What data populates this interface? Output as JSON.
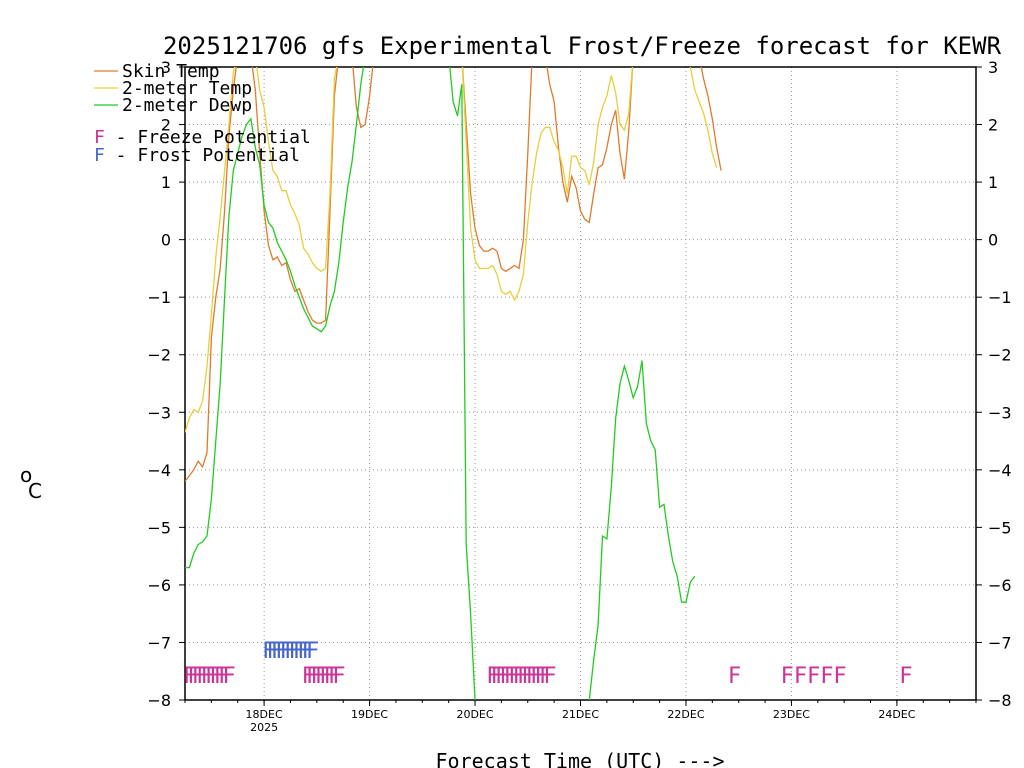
{
  "chart_data": {
    "type": "line",
    "title": "2025121706 gfs Experimental Frost/Freeze forecast for KEWR",
    "xlabel": "Forecast Time (UTC) --->",
    "ylabel_unit": "o",
    "ylabel_letter": "C",
    "ylim": [
      -8,
      3
    ],
    "yticks": [
      -8,
      -7,
      -6,
      -5,
      -4,
      -3,
      -2,
      -1,
      0,
      1,
      2,
      3
    ],
    "xlim_hours": [
      0,
      180
    ],
    "x_unit": "hours after 2025-12-17 06 UTC",
    "xticks": [
      {
        "hour": 18,
        "label": "18DEC",
        "sub": "2025"
      },
      {
        "hour": 42,
        "label": "19DEC",
        "sub": ""
      },
      {
        "hour": 66,
        "label": "20DEC",
        "sub": ""
      },
      {
        "hour": 90,
        "label": "21DEC",
        "sub": ""
      },
      {
        "hour": 114,
        "label": "22DEC",
        "sub": ""
      },
      {
        "hour": 138,
        "label": "23DEC",
        "sub": ""
      },
      {
        "hour": 162,
        "label": "24DEC",
        "sub": ""
      }
    ],
    "legend": [
      {
        "label": "Skin Temp",
        "color": "#e07a2e"
      },
      {
        "label": "2-meter Temp",
        "color": "#e8cf3a"
      },
      {
        "label": "2-meter Dewp",
        "color": "#22cc22"
      }
    ],
    "potential_legend": [
      {
        "letter": "F",
        "text": " - Freeze Potential",
        "color": "#cc3399"
      },
      {
        "letter": "F",
        "text": " - Frost Potential",
        "color": "#4466cc"
      }
    ],
    "series": [
      {
        "name": "Skin Temp",
        "color": "#e07a2e",
        "segments": [
          [
            [
              0,
              -4.2
            ],
            [
              1,
              -4.1
            ],
            [
              2,
              -4.0
            ],
            [
              3,
              -3.85
            ],
            [
              4,
              -3.95
            ],
            [
              5,
              -3.7
            ],
            [
              6,
              -1.7
            ],
            [
              7,
              -1.0
            ],
            [
              8,
              -0.5
            ],
            [
              9,
              0.5
            ],
            [
              10,
              1.8
            ],
            [
              11,
              2.6
            ],
            [
              12,
              3.2
            ]
          ],
          [
            [
              15,
              3.2
            ],
            [
              16,
              2.6
            ],
            [
              17,
              1.5
            ],
            [
              18,
              0.5
            ],
            [
              19,
              -0.1
            ],
            [
              20,
              -0.35
            ],
            [
              21,
              -0.3
            ],
            [
              22,
              -0.45
            ],
            [
              23,
              -0.4
            ],
            [
              24,
              -0.7
            ],
            [
              25,
              -0.9
            ],
            [
              26,
              -0.85
            ],
            [
              27,
              -1.05
            ],
            [
              28,
              -1.25
            ],
            [
              29,
              -1.4
            ],
            [
              30,
              -1.45
            ],
            [
              31,
              -1.45
            ],
            [
              32,
              -1.4
            ],
            [
              33,
              0.5
            ],
            [
              34,
              2.5
            ],
            [
              35,
              3.2
            ]
          ],
          [
            [
              38,
              3.2
            ],
            [
              39,
              2.3
            ],
            [
              40,
              1.95
            ],
            [
              41,
              2.0
            ],
            [
              42,
              2.5
            ],
            [
              43,
              3.2
            ]
          ],
          [
            [
              63,
              3.2
            ],
            [
              64,
              2.0
            ],
            [
              65,
              0.8
            ],
            [
              66,
              0.2
            ],
            [
              67,
              -0.1
            ],
            [
              68,
              -0.2
            ],
            [
              69,
              -0.2
            ],
            [
              70,
              -0.15
            ],
            [
              71,
              -0.2
            ],
            [
              72,
              -0.5
            ],
            [
              73,
              -0.55
            ],
            [
              74,
              -0.5
            ],
            [
              75,
              -0.45
            ],
            [
              76,
              -0.5
            ],
            [
              77,
              0.0
            ],
            [
              78,
              1.5
            ],
            [
              79,
              3.2
            ]
          ],
          [
            [
              82,
              3.2
            ],
            [
              83,
              2.7
            ],
            [
              84,
              2.4
            ],
            [
              85,
              1.6
            ],
            [
              86,
              1.0
            ],
            [
              87,
              0.65
            ],
            [
              88,
              1.1
            ],
            [
              89,
              0.9
            ],
            [
              90,
              0.5
            ],
            [
              91,
              0.35
            ],
            [
              92,
              0.3
            ],
            [
              93,
              0.8
            ],
            [
              94,
              1.25
            ],
            [
              95,
              1.3
            ],
            [
              96,
              1.6
            ],
            [
              97,
              2.0
            ],
            [
              98,
              2.25
            ],
            [
              99,
              1.5
            ],
            [
              100,
              1.05
            ],
            [
              101,
              1.9
            ],
            [
              102,
              3.2
            ]
          ],
          [
            [
              117,
              3.2
            ],
            [
              118,
              2.8
            ],
            [
              119,
              2.5
            ],
            [
              120,
              2.1
            ],
            [
              121,
              1.6
            ],
            [
              122,
              1.2
            ]
          ]
        ]
      },
      {
        "name": "2-meter Temp",
        "color": "#e8cf3a",
        "segments": [
          [
            [
              0,
              -3.35
            ],
            [
              1,
              -3.1
            ],
            [
              2,
              -2.95
            ],
            [
              3,
              -3.0
            ],
            [
              4,
              -2.8
            ],
            [
              5,
              -2.2
            ],
            [
              6,
              -1.3
            ],
            [
              7,
              -0.3
            ],
            [
              8,
              0.4
            ],
            [
              9,
              1.2
            ],
            [
              10,
              2.0
            ],
            [
              11,
              2.9
            ],
            [
              12,
              3.2
            ]
          ],
          [
            [
              16,
              3.2
            ],
            [
              17,
              2.6
            ],
            [
              18,
              2.3
            ],
            [
              19,
              1.7
            ],
            [
              20,
              1.2
            ],
            [
              21,
              1.1
            ],
            [
              22,
              0.85
            ],
            [
              23,
              0.85
            ],
            [
              24,
              0.6
            ],
            [
              25,
              0.45
            ],
            [
              26,
              0.25
            ],
            [
              27,
              -0.15
            ],
            [
              28,
              -0.25
            ],
            [
              29,
              -0.4
            ],
            [
              30,
              -0.5
            ],
            [
              31,
              -0.55
            ],
            [
              32,
              -0.5
            ],
            [
              33,
              0.8
            ],
            [
              34,
              2.8
            ],
            [
              35,
              3.2
            ]
          ],
          [
            [
              63,
              3.2
            ],
            [
              64,
              1.7
            ],
            [
              65,
              0.2
            ],
            [
              66,
              -0.35
            ],
            [
              67,
              -0.5
            ],
            [
              68,
              -0.5
            ],
            [
              69,
              -0.5
            ],
            [
              70,
              -0.45
            ],
            [
              71,
              -0.6
            ],
            [
              72,
              -0.9
            ],
            [
              73,
              -0.95
            ],
            [
              74,
              -0.9
            ],
            [
              75,
              -1.05
            ],
            [
              76,
              -0.9
            ],
            [
              77,
              -0.6
            ],
            [
              78,
              0.3
            ],
            [
              79,
              1.0
            ],
            [
              80,
              1.5
            ],
            [
              81,
              1.85
            ],
            [
              82,
              1.95
            ],
            [
              83,
              1.95
            ],
            [
              84,
              1.7
            ],
            [
              85,
              1.55
            ],
            [
              86,
              1.25
            ],
            [
              87,
              0.8
            ],
            [
              88,
              1.45
            ],
            [
              89,
              1.45
            ],
            [
              90,
              1.25
            ],
            [
              91,
              1.2
            ],
            [
              92,
              0.95
            ],
            [
              93,
              1.35
            ],
            [
              94,
              2.0
            ],
            [
              95,
              2.3
            ],
            [
              96,
              2.5
            ],
            [
              97,
              2.85
            ],
            [
              98,
              2.55
            ],
            [
              99,
              2.0
            ],
            [
              100,
              1.9
            ],
            [
              101,
              2.2
            ],
            [
              102,
              3.2
            ]
          ],
          [
            [
              114,
              3.2
            ],
            [
              115,
              3.0
            ],
            [
              116,
              2.6
            ],
            [
              117,
              2.4
            ],
            [
              118,
              2.2
            ],
            [
              119,
              1.9
            ],
            [
              120,
              1.5
            ],
            [
              121,
              1.25
            ]
          ]
        ]
      },
      {
        "name": "2-meter Dewp",
        "color": "#22cc22",
        "segments": [
          [
            [
              0,
              -5.7
            ],
            [
              1,
              -5.7
            ],
            [
              2,
              -5.45
            ],
            [
              3,
              -5.3
            ],
            [
              4,
              -5.25
            ],
            [
              5,
              -5.15
            ],
            [
              6,
              -4.5
            ],
            [
              7,
              -3.5
            ],
            [
              8,
              -2.5
            ],
            [
              9,
              -1.0
            ],
            [
              10,
              0.4
            ],
            [
              11,
              1.2
            ],
            [
              12,
              1.5
            ],
            [
              13,
              1.8
            ],
            [
              14,
              2.0
            ],
            [
              15,
              2.1
            ],
            [
              16,
              1.6
            ],
            [
              17,
              1.3
            ],
            [
              18,
              0.6
            ],
            [
              19,
              0.3
            ],
            [
              20,
              0.2
            ],
            [
              21,
              -0.05
            ],
            [
              22,
              -0.2
            ],
            [
              23,
              -0.35
            ],
            [
              24,
              -0.55
            ],
            [
              25,
              -0.8
            ],
            [
              26,
              -1.0
            ],
            [
              27,
              -1.2
            ],
            [
              28,
              -1.35
            ],
            [
              29,
              -1.5
            ],
            [
              30,
              -1.55
            ],
            [
              31,
              -1.6
            ],
            [
              32,
              -1.5
            ],
            [
              33,
              -1.15
            ],
            [
              34,
              -0.9
            ],
            [
              35,
              -0.4
            ],
            [
              36,
              0.3
            ],
            [
              37,
              0.9
            ],
            [
              38,
              1.35
            ],
            [
              39,
              2.0
            ],
            [
              40,
              2.7
            ],
            [
              41,
              3.2
            ]
          ],
          [
            [
              60,
              3.2
            ],
            [
              61,
              2.4
            ],
            [
              62,
              2.15
            ],
            [
              63,
              2.7
            ],
            [
              64,
              -5.3
            ],
            [
              65,
              -6.5
            ],
            [
              66,
              -8.0
            ]
          ],
          [
            [
              92,
              -8.0
            ],
            [
              93,
              -7.3
            ],
            [
              94,
              -6.7
            ],
            [
              95,
              -5.15
            ],
            [
              96,
              -5.2
            ],
            [
              97,
              -4.3
            ],
            [
              98,
              -3.1
            ],
            [
              99,
              -2.5
            ],
            [
              100,
              -2.2
            ],
            [
              101,
              -2.45
            ],
            [
              102,
              -2.75
            ],
            [
              103,
              -2.55
            ],
            [
              104,
              -2.1
            ],
            [
              105,
              -3.2
            ],
            [
              106,
              -3.5
            ],
            [
              107,
              -3.65
            ],
            [
              108,
              -4.65
            ],
            [
              109,
              -4.6
            ],
            [
              110,
              -5.15
            ],
            [
              111,
              -5.6
            ],
            [
              112,
              -5.85
            ],
            [
              113,
              -6.3
            ],
            [
              114,
              -6.3
            ],
            [
              115,
              -5.95
            ],
            [
              116,
              -5.85
            ]
          ]
        ]
      }
    ],
    "freeze_potential_hours": [
      0,
      1,
      2,
      3,
      4,
      5,
      6,
      7,
      8,
      9,
      27,
      28,
      29,
      30,
      31,
      32,
      33,
      34,
      69,
      70,
      71,
      72,
      73,
      74,
      75,
      76,
      77,
      78,
      79,
      80,
      81,
      82,
      124,
      136,
      139,
      142,
      145,
      148,
      163
    ],
    "frost_potential_hours": [
      18,
      19,
      20,
      21,
      22,
      23,
      24,
      25,
      26,
      27,
      28
    ],
    "freeze_color": "#cc3399",
    "frost_color": "#4466cc"
  }
}
